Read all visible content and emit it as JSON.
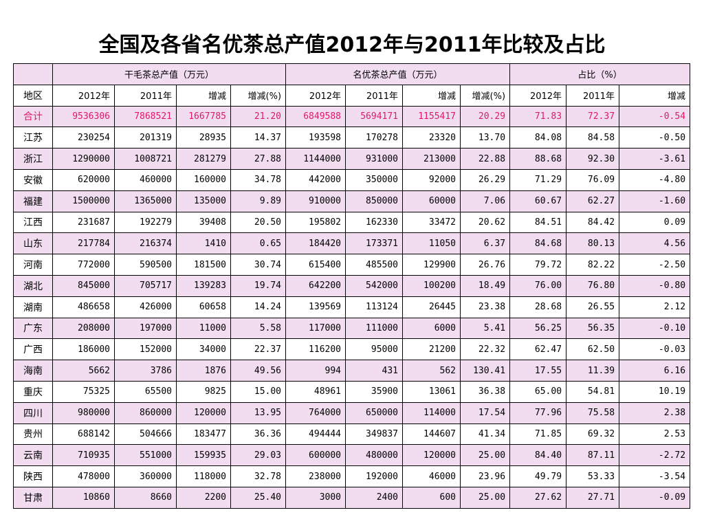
{
  "title": "全国及各省名优茶总产值2012年与2011年比较及占比",
  "groups": {
    "dry_tea": "干毛茶总产值（万元）",
    "premium_tea": "名优茶总产值（万元）",
    "ratio": "占比（%）"
  },
  "subheaders": {
    "region": "地区",
    "y2012": "2012年",
    "y2011": "2011年",
    "change": "增减",
    "change_pct": "增减(%)"
  },
  "rows": [
    {
      "region": "合计",
      "d2012": "9536306",
      "d2011": "7868521",
      "dchg": "1667785",
      "dpct": "21.20",
      "p2012": "6849588",
      "p2011": "5694171",
      "pchg": "1155417",
      "ppct": "20.29",
      "r2012": "71.83",
      "r2011": "72.37",
      "rchg": "-0.54"
    },
    {
      "region": "江苏",
      "d2012": "230254",
      "d2011": "201319",
      "dchg": "28935",
      "dpct": "14.37",
      "p2012": "193598",
      "p2011": "170278",
      "pchg": "23320",
      "ppct": "13.70",
      "r2012": "84.08",
      "r2011": "84.58",
      "rchg": "-0.50"
    },
    {
      "region": "浙江",
      "d2012": "1290000",
      "d2011": "1008721",
      "dchg": "281279",
      "dpct": "27.88",
      "p2012": "1144000",
      "p2011": "931000",
      "pchg": "213000",
      "ppct": "22.88",
      "r2012": "88.68",
      "r2011": "92.30",
      "rchg": "-3.61"
    },
    {
      "region": "安徽",
      "d2012": "620000",
      "d2011": "460000",
      "dchg": "160000",
      "dpct": "34.78",
      "p2012": "442000",
      "p2011": "350000",
      "pchg": "92000",
      "ppct": "26.29",
      "r2012": "71.29",
      "r2011": "76.09",
      "rchg": "-4.80"
    },
    {
      "region": "福建",
      "d2012": "1500000",
      "d2011": "1365000",
      "dchg": "135000",
      "dpct": "9.89",
      "p2012": "910000",
      "p2011": "850000",
      "pchg": "60000",
      "ppct": "7.06",
      "r2012": "60.67",
      "r2011": "62.27",
      "rchg": "-1.60"
    },
    {
      "region": "江西",
      "d2012": "231687",
      "d2011": "192279",
      "dchg": "39408",
      "dpct": "20.50",
      "p2012": "195802",
      "p2011": "162330",
      "pchg": "33472",
      "ppct": "20.62",
      "r2012": "84.51",
      "r2011": "84.42",
      "rchg": "0.09"
    },
    {
      "region": "山东",
      "d2012": "217784",
      "d2011": "216374",
      "dchg": "1410",
      "dpct": "0.65",
      "p2012": "184420",
      "p2011": "173371",
      "pchg": "11050",
      "ppct": "6.37",
      "r2012": "84.68",
      "r2011": "80.13",
      "rchg": "4.56"
    },
    {
      "region": "河南",
      "d2012": "772000",
      "d2011": "590500",
      "dchg": "181500",
      "dpct": "30.74",
      "p2012": "615400",
      "p2011": "485500",
      "pchg": "129900",
      "ppct": "26.76",
      "r2012": "79.72",
      "r2011": "82.22",
      "rchg": "-2.50"
    },
    {
      "region": "湖北",
      "d2012": "845000",
      "d2011": "705717",
      "dchg": "139283",
      "dpct": "19.74",
      "p2012": "642200",
      "p2011": "542000",
      "pchg": "100200",
      "ppct": "18.49",
      "r2012": "76.00",
      "r2011": "76.80",
      "rchg": "-0.80"
    },
    {
      "region": "湖南",
      "d2012": "486658",
      "d2011": "426000",
      "dchg": "60658",
      "dpct": "14.24",
      "p2012": "139569",
      "p2011": "113124",
      "pchg": "26445",
      "ppct": "23.38",
      "r2012": "28.68",
      "r2011": "26.55",
      "rchg": "2.12"
    },
    {
      "region": "广东",
      "d2012": "208000",
      "d2011": "197000",
      "dchg": "11000",
      "dpct": "5.58",
      "p2012": "117000",
      "p2011": "111000",
      "pchg": "6000",
      "ppct": "5.41",
      "r2012": "56.25",
      "r2011": "56.35",
      "rchg": "-0.10"
    },
    {
      "region": "广西",
      "d2012": "186000",
      "d2011": "152000",
      "dchg": "34000",
      "dpct": "22.37",
      "p2012": "116200",
      "p2011": "95000",
      "pchg": "21200",
      "ppct": "22.32",
      "r2012": "62.47",
      "r2011": "62.50",
      "rchg": "-0.03"
    },
    {
      "region": "海南",
      "d2012": "5662",
      "d2011": "3786",
      "dchg": "1876",
      "dpct": "49.56",
      "p2012": "994",
      "p2011": "431",
      "pchg": "562",
      "ppct": "130.41",
      "r2012": "17.55",
      "r2011": "11.39",
      "rchg": "6.16"
    },
    {
      "region": "重庆",
      "d2012": "75325",
      "d2011": "65500",
      "dchg": "9825",
      "dpct": "15.00",
      "p2012": "48961",
      "p2011": "35900",
      "pchg": "13061",
      "ppct": "36.38",
      "r2012": "65.00",
      "r2011": "54.81",
      "rchg": "10.19"
    },
    {
      "region": "四川",
      "d2012": "980000",
      "d2011": "860000",
      "dchg": "120000",
      "dpct": "13.95",
      "p2012": "764000",
      "p2011": "650000",
      "pchg": "114000",
      "ppct": "17.54",
      "r2012": "77.96",
      "r2011": "75.58",
      "rchg": "2.38"
    },
    {
      "region": "贵州",
      "d2012": "688142",
      "d2011": "504666",
      "dchg": "183477",
      "dpct": "36.36",
      "p2012": "494444",
      "p2011": "349837",
      "pchg": "144607",
      "ppct": "41.34",
      "r2012": "71.85",
      "r2011": "69.32",
      "rchg": "2.53"
    },
    {
      "region": "云南",
      "d2012": "710935",
      "d2011": "551000",
      "dchg": "159935",
      "dpct": "29.03",
      "p2012": "600000",
      "p2011": "480000",
      "pchg": "120000",
      "ppct": "25.00",
      "r2012": "84.40",
      "r2011": "87.11",
      "rchg": "-2.72"
    },
    {
      "region": "陕西",
      "d2012": "478000",
      "d2011": "360000",
      "dchg": "118000",
      "dpct": "32.78",
      "p2012": "238000",
      "p2011": "192000",
      "pchg": "46000",
      "ppct": "23.96",
      "r2012": "49.79",
      "r2011": "53.33",
      "rchg": "-3.54"
    },
    {
      "region": "甘肃",
      "d2012": "10860",
      "d2011": "8660",
      "dchg": "2200",
      "dpct": "25.40",
      "p2012": "3000",
      "p2011": "2400",
      "pchg": "600",
      "ppct": "25.00",
      "r2012": "27.62",
      "r2011": "27.71",
      "rchg": "-0.09"
    }
  ],
  "colors": {
    "row_band": "#f1dcf0",
    "total_text": "#e0196a",
    "border": "#000000"
  }
}
